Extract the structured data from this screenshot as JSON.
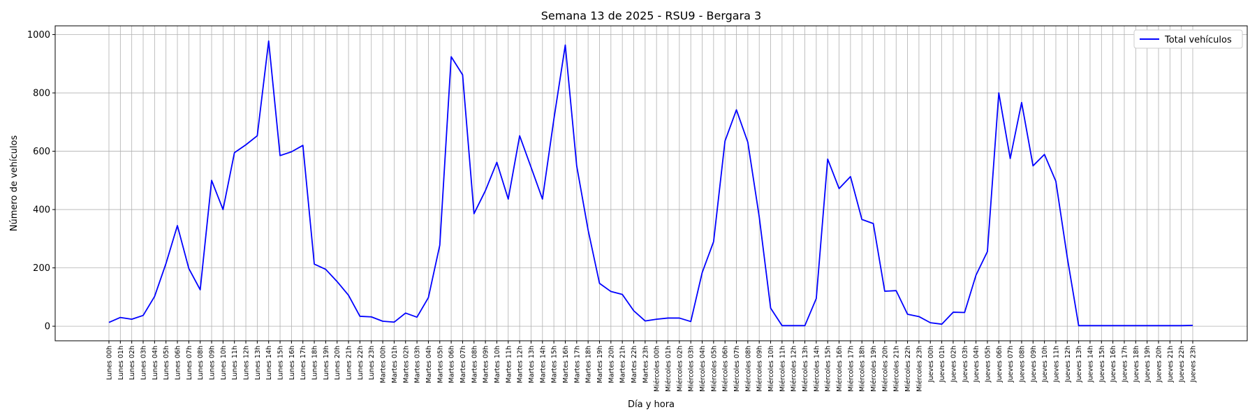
{
  "chart_data": {
    "type": "line",
    "title": "Semana 13 de 2025 - RSU9 - Bergara 3",
    "xlabel": "Día y hora",
    "ylabel": "Número de vehículos",
    "ylim": [
      -50,
      1030
    ],
    "yticks": [
      0,
      200,
      400,
      600,
      800,
      1000
    ],
    "grid": true,
    "legend_position": "top-right",
    "color": "#0000ff",
    "categories": [
      "Lunes 00h",
      "Lunes 01h",
      "Lunes 02h",
      "Lunes 03h",
      "Lunes 04h",
      "Lunes 05h",
      "Lunes 06h",
      "Lunes 07h",
      "Lunes 08h",
      "Lunes 09h",
      "Lunes 10h",
      "Lunes 11h",
      "Lunes 12h",
      "Lunes 13h",
      "Lunes 14h",
      "Lunes 15h",
      "Lunes 16h",
      "Lunes 17h",
      "Lunes 18h",
      "Lunes 19h",
      "Lunes 20h",
      "Lunes 21h",
      "Lunes 22h",
      "Lunes 23h",
      "Martes 00h",
      "Martes 01h",
      "Martes 02h",
      "Martes 03h",
      "Martes 04h",
      "Martes 05h",
      "Martes 06h",
      "Martes 07h",
      "Martes 08h",
      "Martes 09h",
      "Martes 10h",
      "Martes 11h",
      "Martes 12h",
      "Martes 13h",
      "Martes 14h",
      "Martes 15h",
      "Martes 16h",
      "Martes 17h",
      "Martes 18h",
      "Martes 19h",
      "Martes 20h",
      "Martes 21h",
      "Martes 22h",
      "Martes 23h",
      "Miércoles 00h",
      "Miércoles 01h",
      "Miércoles 02h",
      "Miércoles 03h",
      "Miércoles 04h",
      "Miércoles 05h",
      "Miércoles 06h",
      "Miércoles 07h",
      "Miércoles 08h",
      "Miércoles 09h",
      "Miércoles 10h",
      "Miércoles 11h",
      "Miércoles 12h",
      "Miércoles 13h",
      "Miércoles 14h",
      "Miércoles 15h",
      "Miércoles 16h",
      "Miércoles 17h",
      "Miércoles 18h",
      "Miércoles 19h",
      "Miércoles 20h",
      "Miércoles 21h",
      "Miércoles 22h",
      "Miércoles 23h",
      "Jueves 00h",
      "Jueves 01h",
      "Jueves 02h",
      "Jueves 03h",
      "Jueves 04h",
      "Jueves 05h",
      "Jueves 06h",
      "Jueves 07h",
      "Jueves 08h",
      "Jueves 09h",
      "Jueves 10h",
      "Jueves 11h",
      "Jueves 12h",
      "Jueves 13h",
      "Jueves 14h",
      "Jueves 15h",
      "Jueves 16h",
      "Jueves 17h",
      "Jueves 18h",
      "Jueves 19h",
      "Jueves 20h",
      "Jueves 21h",
      "Jueves 22h",
      "Jueves 23h"
    ],
    "series": [
      {
        "name": "Total vehículos",
        "values": [
          13,
          30,
          24,
          37,
          102,
          215,
          345,
          198,
          125,
          500,
          400,
          595,
          622,
          653,
          978,
          585,
          598,
          620,
          213,
          195,
          153,
          106,
          34,
          32,
          17,
          14,
          45,
          31,
          98,
          278,
          924,
          862,
          386,
          465,
          562,
          436,
          653,
          545,
          436,
          710,
          964,
          550,
          330,
          147,
          119,
          109,
          53,
          18,
          24,
          28,
          28,
          16,
          184,
          290,
          635,
          742,
          631,
          375,
          62,
          2,
          2,
          2,
          95,
          573,
          472,
          513,
          366,
          352,
          120,
          122,
          41,
          33,
          12,
          7,
          48,
          47,
          175,
          256,
          800,
          575,
          767,
          550,
          589,
          497,
          236,
          2,
          2,
          2,
          2,
          2,
          2,
          2,
          2,
          2,
          2,
          3
        ]
      }
    ]
  }
}
